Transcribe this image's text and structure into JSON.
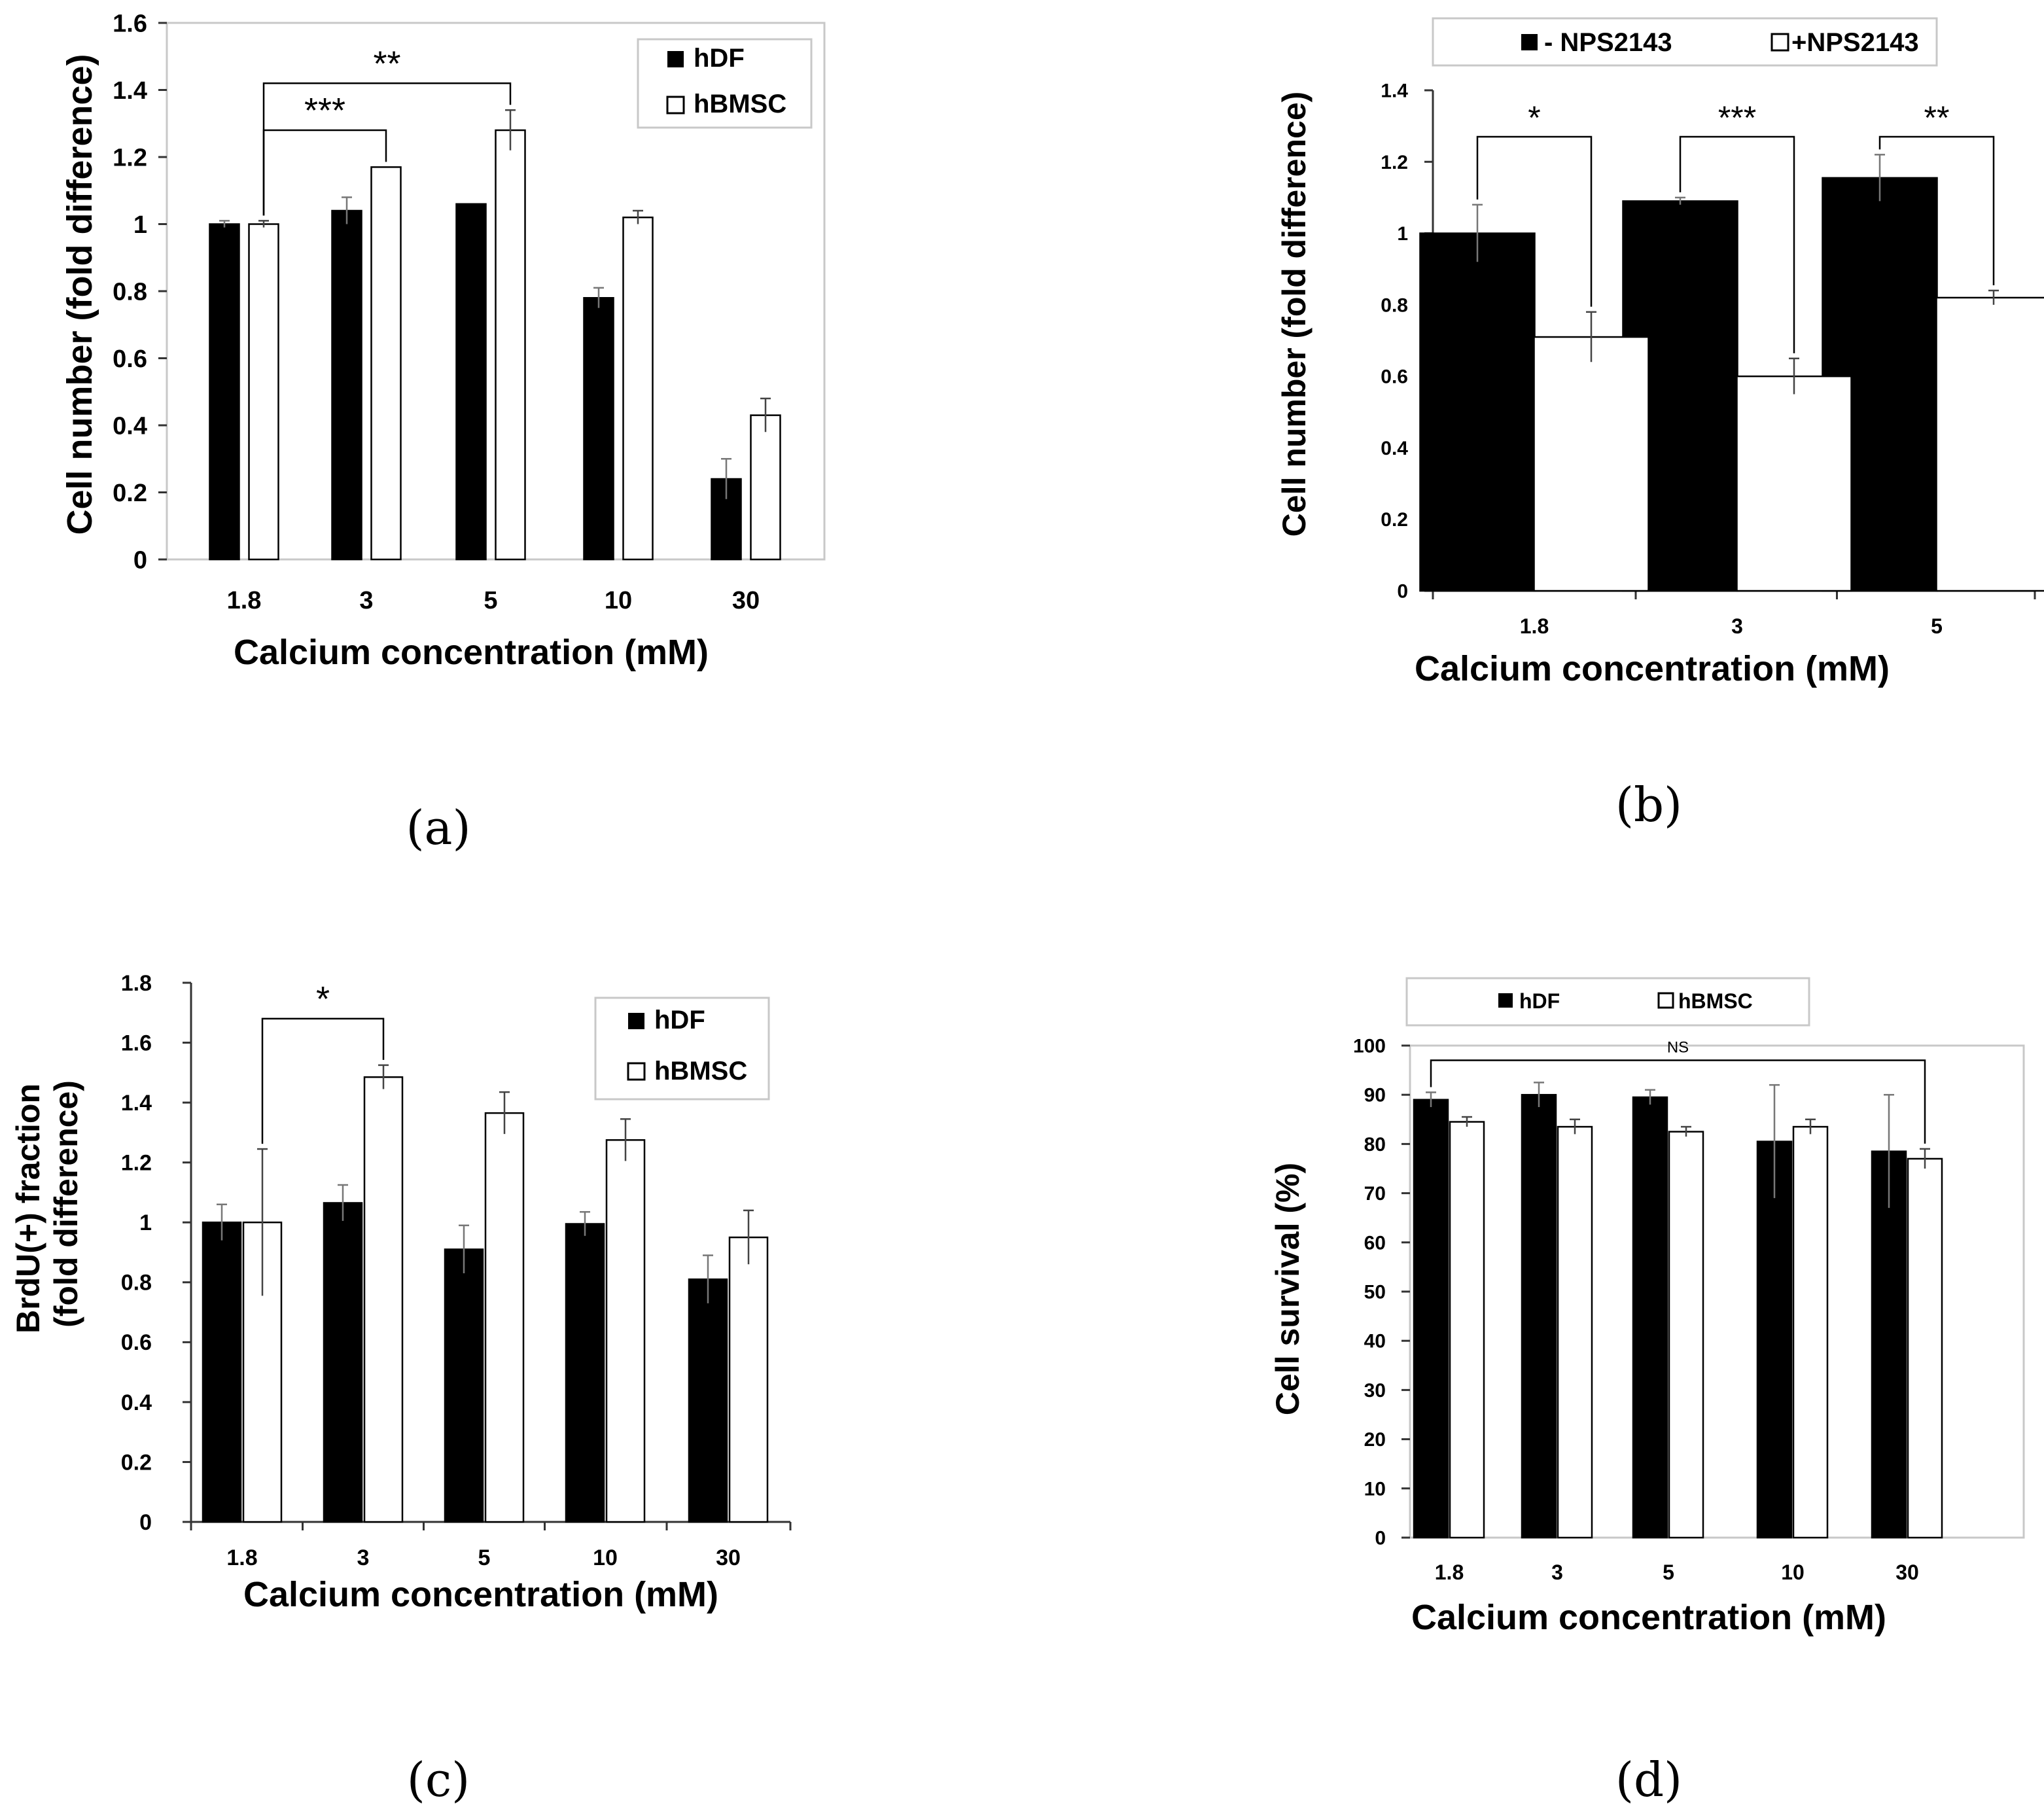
{
  "panel_labels": [
    "(a)",
    "(b)",
    "(c)",
    "(d)"
  ],
  "chart_data": [
    {
      "panel": "(a)",
      "type": "bar",
      "categories": [
        "1.8",
        "3",
        "5",
        "10",
        "30"
      ],
      "series": [
        {
          "name": "hDF",
          "fill": "#000000",
          "values": [
            1.0,
            1.04,
            1.06,
            0.78,
            0.24
          ],
          "errors": [
            0.01,
            0.04,
            0.0,
            0.03,
            0.06
          ]
        },
        {
          "name": "hBMSC",
          "fill": "#ffffff",
          "values": [
            1.0,
            1.17,
            1.28,
            1.02,
            0.43
          ],
          "errors": [
            0.01,
            0.0,
            0.06,
            0.02,
            0.05
          ]
        }
      ],
      "xlabel": "Calcium concentration (mM)",
      "ylabel": "Cell number (fold difference)",
      "ylim": [
        0,
        1.6
      ],
      "yticks": [
        0,
        0.2,
        0.4,
        0.6,
        0.8,
        1,
        1.2,
        1.4,
        1.6
      ],
      "ytick_labels": [
        "0",
        "0.2",
        "0.4",
        "0.6",
        "0.8",
        "1",
        "1.2",
        "1.4",
        "1.6"
      ],
      "legend": {
        "placement": "top-right",
        "boxed": true,
        "entries": [
          "hDF",
          "hBMSC"
        ]
      },
      "significance": [
        {
          "label": "***",
          "from": {
            "cat": 0,
            "series": 1
          },
          "to": {
            "cat": 1,
            "series": 1
          },
          "y": 1.28
        },
        {
          "label": "**",
          "from": {
            "cat": 0,
            "series": 1
          },
          "to": {
            "cat": 2,
            "series": 1
          },
          "y": 1.42
        }
      ]
    },
    {
      "panel": "(b)",
      "type": "bar",
      "categories": [
        "1.8",
        "3",
        "5"
      ],
      "series": [
        {
          "name": "- NPS2143",
          "fill": "#000000",
          "values": [
            1.0,
            1.09,
            1.155
          ],
          "errors": [
            0.08,
            0.01,
            0.065
          ]
        },
        {
          "name": "+NPS2143",
          "fill": "#ffffff",
          "values": [
            0.71,
            0.6,
            0.82
          ],
          "errors": [
            0.07,
            0.05,
            0.02
          ]
        }
      ],
      "xlabel": "Calcium concentration (mM)",
      "ylabel": "Cell number (fold difference)",
      "ylim": [
        0,
        1.4
      ],
      "yticks": [
        0,
        0.2,
        0.4,
        0.6,
        0.8,
        1,
        1.2,
        1.4
      ],
      "ytick_labels": [
        "0",
        "0.2",
        "0.4",
        "0.6",
        "0.8",
        "1",
        "1.2",
        "1.4"
      ],
      "legend": {
        "placement": "top",
        "boxed": true,
        "entries": [
          "- NPS2143",
          "+NPS2143"
        ]
      },
      "significance": [
        {
          "label": "*",
          "from": {
            "cat": 0,
            "series": 0
          },
          "to": {
            "cat": 0,
            "series": 1
          },
          "y": 1.27
        },
        {
          "label": "***",
          "from": {
            "cat": 1,
            "series": 0
          },
          "to": {
            "cat": 1,
            "series": 1
          },
          "y": 1.27
        },
        {
          "label": "**",
          "from": {
            "cat": 2,
            "series": 0
          },
          "to": {
            "cat": 2,
            "series": 1
          },
          "y": 1.27
        }
      ]
    },
    {
      "panel": "(c)",
      "type": "bar",
      "categories": [
        "1.8",
        "3",
        "5",
        "10",
        "30"
      ],
      "series": [
        {
          "name": "hDF",
          "fill": "#000000",
          "values": [
            1.0,
            1.065,
            0.91,
            0.995,
            0.81
          ],
          "errors": [
            0.06,
            0.06,
            0.08,
            0.04,
            0.08
          ]
        },
        {
          "name": "hBMSC",
          "fill": "#ffffff",
          "values": [
            1.0,
            1.485,
            1.365,
            1.275,
            0.95
          ],
          "errors": [
            0.245,
            0.04,
            0.07,
            0.07,
            0.09
          ]
        }
      ],
      "xlabel": "Calcium concentration (mM)",
      "ylabel": [
        "BrdU(+) fraction",
        "(fold difference)"
      ],
      "ylim": [
        0,
        1.8
      ],
      "yticks": [
        0,
        0.2,
        0.4,
        0.6,
        0.8,
        1,
        1.2,
        1.4,
        1.6,
        1.8
      ],
      "ytick_labels": [
        "0",
        "0.2",
        "0.4",
        "0.6",
        "0.8",
        "1",
        "1.2",
        "1.4",
        "1.6",
        "1.8"
      ],
      "legend": {
        "placement": "top-right",
        "boxed": true,
        "entries": [
          "hDF",
          "hBMSC"
        ]
      },
      "significance": [
        {
          "label": "*",
          "from": {
            "cat": 0,
            "series": 1
          },
          "to": {
            "cat": 1,
            "series": 1
          },
          "y": 1.68
        }
      ]
    },
    {
      "panel": "(d)",
      "type": "bar",
      "categories": [
        "1.8",
        "3",
        "5",
        "10",
        "30"
      ],
      "series": [
        {
          "name": "hDF",
          "fill": "#000000",
          "values": [
            89,
            90,
            89.5,
            80.5,
            78.5
          ],
          "errors": [
            1.5,
            2.5,
            1.5,
            11.5,
            11.5
          ]
        },
        {
          "name": "hBMSC",
          "fill": "#ffffff",
          "values": [
            84.5,
            83.5,
            82.5,
            83.5,
            77
          ],
          "errors": [
            1.0,
            1.5,
            1.0,
            1.5,
            2.0
          ]
        }
      ],
      "xlabel": "Calcium concentration (mM)",
      "ylabel": "Cell survival (%)",
      "ylim": [
        0,
        100
      ],
      "yticks": [
        0,
        10,
        20,
        30,
        40,
        50,
        60,
        70,
        80,
        90,
        100
      ],
      "ytick_labels": [
        "0",
        "10",
        "20",
        "30",
        "40",
        "50",
        "60",
        "70",
        "80",
        "90",
        "100"
      ],
      "legend": {
        "placement": "top",
        "boxed": true,
        "entries": [
          "hDF",
          "hBMSC"
        ]
      },
      "significance": [
        {
          "label": "NS",
          "from": {
            "cat": 0,
            "series": 0
          },
          "to": {
            "cat": 4,
            "series": 1
          },
          "y": 97
        }
      ]
    }
  ]
}
